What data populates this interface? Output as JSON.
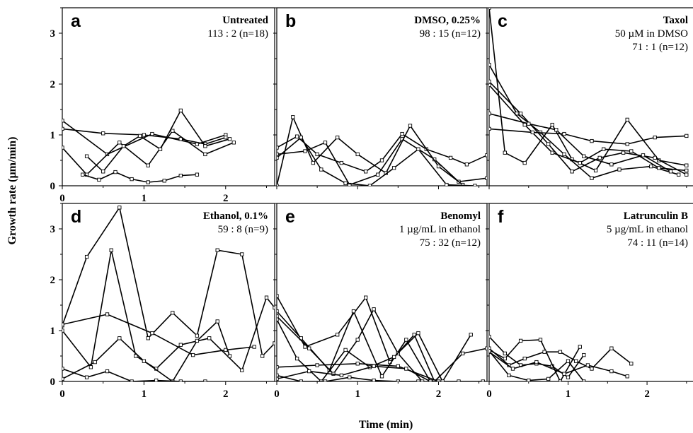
{
  "figure": {
    "ylabel": "Growth rate (µm/min)",
    "xlabel": "Time (min)"
  },
  "chart_data": [
    {
      "type": "line",
      "panel": "a",
      "title": "Untreated",
      "subtitle": "",
      "counts": "113 : 2 (n=18)",
      "xlim": [
        0,
        2.6
      ],
      "ylim": [
        0,
        3.5
      ],
      "xticks": [
        "0",
        "1",
        "2"
      ],
      "yticks": [
        "0",
        "1",
        "2",
        "3"
      ],
      "grid": false,
      "series": [
        {
          "x": [
            0.0,
            0.55,
            1.1,
            1.65,
            2.0
          ],
          "y": [
            1.28,
            0.62,
            1.02,
            0.82,
            1.0
          ]
        },
        {
          "x": [
            0.0,
            0.5,
            1.0,
            1.45,
            1.75,
            2.0
          ],
          "y": [
            1.12,
            1.03,
            1.0,
            0.92,
            0.82,
            0.95
          ]
        },
        {
          "x": [
            0.0,
            0.3,
            0.7,
            1.05,
            1.35,
            1.75,
            2.1
          ],
          "y": [
            0.75,
            0.22,
            0.85,
            0.4,
            1.08,
            0.62,
            0.85
          ]
        },
        {
          "x": [
            0.3,
            0.5,
            0.75,
            0.95,
            1.2,
            1.45,
            1.75,
            2.05
          ],
          "y": [
            0.58,
            0.28,
            0.78,
            0.98,
            0.72,
            1.48,
            0.78,
            0.92
          ]
        },
        {
          "x": [
            0.25,
            0.45,
            0.65,
            0.85,
            1.05,
            1.25,
            1.45,
            1.65
          ],
          "y": [
            0.22,
            0.12,
            0.27,
            0.13,
            0.07,
            0.1,
            0.2,
            0.22
          ]
        }
      ]
    },
    {
      "type": "line",
      "panel": "b",
      "title": "DMSO, 0.25%",
      "subtitle": "",
      "counts": "98 : 15 (n=12)",
      "xlim": [
        0,
        2.6
      ],
      "ylim": [
        0,
        3.5
      ],
      "xticks": [],
      "yticks": [],
      "grid": false,
      "series": [
        {
          "x": [
            0.0,
            0.25,
            0.5,
            0.8,
            1.1,
            1.3,
            1.55,
            1.85,
            2.15,
            2.35,
            2.6
          ],
          "y": [
            0.75,
            0.97,
            0.62,
            0.45,
            0.28,
            0.5,
            1.02,
            0.72,
            0.55,
            0.42,
            0.6
          ]
        },
        {
          "x": [
            0.0,
            0.35,
            0.6,
            0.9,
            1.25,
            1.55,
            1.95,
            2.25,
            2.6
          ],
          "y": [
            0.62,
            0.68,
            0.85,
            0.02,
            0.22,
            0.92,
            0.52,
            0.08,
            0.15
          ]
        },
        {
          "x": [
            0.0,
            0.2,
            0.45,
            0.75,
            1.0,
            1.35,
            1.65,
            2.0,
            2.3
          ],
          "y": [
            0.0,
            1.35,
            0.45,
            0.95,
            0.62,
            0.25,
            1.18,
            0.38,
            0.02
          ]
        },
        {
          "x": [
            0.0,
            0.3,
            0.55,
            0.85,
            1.15,
            1.45,
            1.75,
            2.1,
            2.45
          ],
          "y": [
            0.55,
            0.95,
            0.32,
            0.05,
            0.0,
            0.35,
            0.72,
            0.02,
            0.0
          ]
        }
      ]
    },
    {
      "type": "line",
      "panel": "c",
      "title": "Taxol",
      "subtitle": "50 µM in DMSO",
      "counts": "71 : 1 (n=12)",
      "xlim": [
        0,
        2.6
      ],
      "ylim": [
        0,
        3.5
      ],
      "xticks": [],
      "yticks": [],
      "grid": false,
      "series": [
        {
          "x": [
            0.0,
            0.2,
            0.45,
            0.8,
            1.05,
            1.35,
            1.75,
            2.15,
            2.5
          ],
          "y": [
            3.5,
            0.65,
            0.45,
            1.2,
            0.52,
            0.3,
            1.3,
            0.5,
            0.4
          ]
        },
        {
          "x": [
            0.0,
            0.35,
            0.65,
            0.95,
            1.3,
            1.65,
            2.05,
            2.4
          ],
          "y": [
            2.38,
            1.42,
            1.05,
            0.62,
            0.15,
            0.32,
            0.38,
            0.22
          ]
        },
        {
          "x": [
            0.0,
            0.4,
            0.75,
            1.05,
            1.4,
            1.7,
            2.1,
            2.5
          ],
          "y": [
            2.05,
            1.42,
            0.82,
            0.28,
            0.55,
            0.65,
            0.55,
            0.22
          ]
        },
        {
          "x": [
            0.0,
            0.45,
            0.8,
            1.15,
            1.45,
            1.8,
            2.15,
            2.5
          ],
          "y": [
            1.98,
            1.2,
            0.65,
            0.45,
            0.72,
            0.68,
            0.35,
            0.3
          ]
        },
        {
          "x": [
            0.0,
            0.5,
            0.85,
            1.2,
            1.55,
            1.95,
            2.3
          ],
          "y": [
            1.42,
            1.22,
            1.1,
            0.58,
            0.42,
            0.6,
            0.28
          ]
        },
        {
          "x": [
            0.0,
            0.55,
            0.95,
            1.3,
            1.75,
            2.1,
            2.5
          ],
          "y": [
            1.12,
            1.05,
            1.02,
            0.88,
            0.82,
            0.95,
            0.98
          ]
        }
      ]
    },
    {
      "type": "line",
      "panel": "d",
      "title": "Ethanol, 0.1%",
      "subtitle": "",
      "counts": "59 : 8 (n=9)",
      "xlim": [
        0,
        2.6
      ],
      "ylim": [
        0,
        3.5
      ],
      "xticks": [
        "0",
        "1",
        "2"
      ],
      "yticks": [
        "0",
        "1",
        "2",
        "3"
      ],
      "grid": false,
      "series": [
        {
          "x": [
            0.0,
            0.3,
            0.7,
            1.05,
            1.35,
            1.65,
            1.9,
            2.2,
            2.45,
            2.6
          ],
          "y": [
            1.1,
            2.45,
            3.42,
            0.85,
            1.35,
            0.9,
            2.58,
            2.5,
            0.5,
            0.75
          ]
        },
        {
          "x": [
            0.0,
            0.35,
            0.6,
            0.9,
            1.15,
            1.45,
            1.8,
            2.2,
            2.5,
            2.6
          ],
          "y": [
            1.0,
            0.28,
            2.58,
            0.5,
            0.25,
            0.72,
            0.85,
            0.22,
            1.65,
            1.45
          ]
        },
        {
          "x": [
            0.0,
            0.55,
            1.1,
            1.6,
            2.0,
            2.35
          ],
          "y": [
            1.12,
            1.32,
            0.95,
            0.52,
            0.62,
            0.68
          ]
        },
        {
          "x": [
            0.0,
            0.4,
            0.7,
            1.0,
            1.35,
            1.65,
            1.9,
            2.05
          ],
          "y": [
            0.05,
            0.38,
            0.85,
            0.4,
            0.0,
            0.8,
            1.18,
            0.5
          ]
        },
        {
          "x": [
            0.0,
            0.3,
            0.55,
            0.85,
            1.15,
            1.45,
            1.75
          ],
          "y": [
            0.25,
            0.08,
            0.2,
            0.0,
            0.02,
            0.0,
            0.0
          ]
        }
      ]
    },
    {
      "type": "line",
      "panel": "e",
      "title": "Benomyl",
      "subtitle": "1 µg/mL in ethanol",
      "counts": "75 : 32 (n=12)",
      "xlim": [
        0,
        2.6
      ],
      "ylim": [
        0,
        3.5
      ],
      "xticks": [
        "0",
        "1",
        "2"
      ],
      "yticks": [],
      "grid": false,
      "series": [
        {
          "x": [
            0.0,
            0.35,
            0.75,
            1.1,
            1.4,
            1.7,
            1.95,
            2.3,
            2.6
          ],
          "y": [
            1.68,
            0.68,
            0.92,
            1.65,
            0.38,
            0.92,
            0.0,
            0.55,
            0.65
          ]
        },
        {
          "x": [
            0.0,
            0.3,
            0.65,
            0.95,
            1.3,
            1.6,
            1.9,
            2.25,
            2.55
          ],
          "y": [
            1.38,
            0.85,
            0.22,
            1.38,
            0.1,
            0.82,
            0.0,
            0.0,
            0.0
          ]
        },
        {
          "x": [
            0.0,
            0.4,
            0.7,
            1.0,
            1.2,
            1.5,
            1.8
          ],
          "y": [
            1.28,
            0.65,
            0.15,
            0.82,
            1.42,
            0.55,
            0.0
          ]
        },
        {
          "x": [
            0.0,
            0.25,
            0.55,
            0.85,
            1.15,
            1.45,
            1.75,
            2.05,
            2.4
          ],
          "y": [
            1.22,
            0.45,
            0.0,
            0.62,
            0.28,
            0.48,
            0.95,
            0.0,
            0.92
          ]
        },
        {
          "x": [
            0.0,
            0.5,
            1.0,
            1.5,
            2.0
          ],
          "y": [
            0.28,
            0.32,
            0.35,
            0.3,
            0.0
          ]
        },
        {
          "x": [
            0.0,
            0.4,
            0.8,
            1.2,
            1.6,
            1.9
          ],
          "y": [
            0.05,
            0.2,
            0.12,
            0.3,
            0.25,
            0.0
          ]
        },
        {
          "x": [
            0.0,
            0.3,
            0.6,
            0.9,
            1.2,
            1.5,
            1.75
          ],
          "y": [
            0.12,
            0.0,
            0.0,
            0.08,
            0.02,
            0.0,
            0.0
          ]
        }
      ]
    },
    {
      "type": "line",
      "panel": "f",
      "title": "Latrunculin B",
      "subtitle": "5 µg/mL in ethanol",
      "counts": "74 : 11 (n=14)",
      "xlim": [
        0,
        2.6
      ],
      "ylim": [
        0,
        3.5
      ],
      "xticks": [
        "0",
        "1",
        "2"
      ],
      "yticks": [],
      "grid": false,
      "series": [
        {
          "x": [
            0.0,
            0.2,
            0.4,
            0.6,
            0.8,
            1.0,
            1.2
          ],
          "y": [
            0.88,
            0.55,
            0.32,
            0.35,
            0.3,
            0.08,
            0.52
          ]
        },
        {
          "x": [
            0.0,
            0.2,
            0.4,
            0.65,
            0.9,
            1.15
          ],
          "y": [
            0.62,
            0.45,
            0.8,
            0.82,
            0.0,
            0.68
          ]
        },
        {
          "x": [
            0.0,
            0.25,
            0.45,
            0.7,
            0.9,
            1.1,
            1.3,
            1.55,
            1.8
          ],
          "y": [
            0.65,
            0.32,
            0.45,
            0.58,
            0.58,
            0.4,
            0.25,
            0.65,
            0.35
          ]
        },
        {
          "x": [
            0.0,
            0.3,
            0.6,
            0.95,
            1.25,
            1.55,
            1.75
          ],
          "y": [
            0.58,
            0.25,
            0.38,
            0.15,
            0.32,
            0.2,
            0.1
          ]
        },
        {
          "x": [
            0.0,
            0.25,
            0.5,
            0.75,
            1.0,
            1.2
          ],
          "y": [
            0.6,
            0.12,
            0.02,
            0.05,
            0.4,
            0.0
          ]
        }
      ]
    }
  ]
}
